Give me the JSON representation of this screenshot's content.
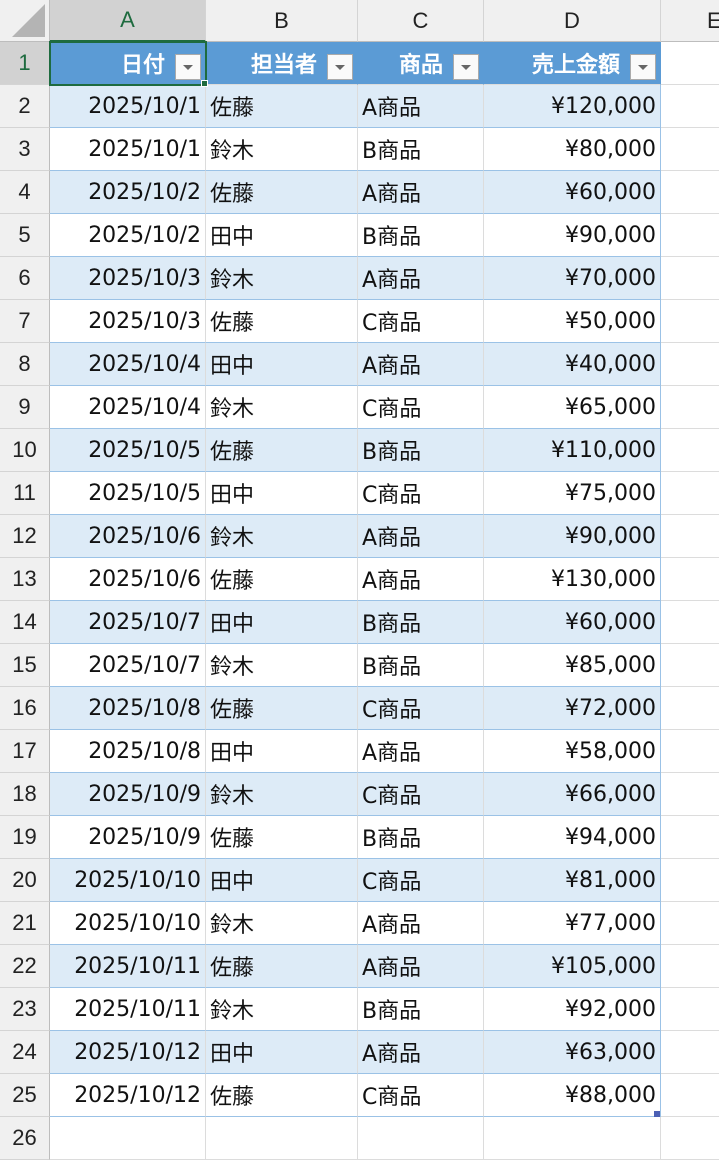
{
  "columns": [
    "A",
    "B",
    "C",
    "D",
    "E"
  ],
  "selected_cell": "A1",
  "colors": {
    "header_bg": "#5b9bd5",
    "band": "#ddebf7",
    "selection": "#1e6b3f"
  },
  "table": {
    "headers": [
      "日付",
      "担当者",
      "商品",
      "売上金額"
    ],
    "rows": [
      [
        "2025/10/1",
        "佐藤",
        "A商品",
        "¥120,000"
      ],
      [
        "2025/10/1",
        "鈴木",
        "B商品",
        "¥80,000"
      ],
      [
        "2025/10/2",
        "佐藤",
        "A商品",
        "¥60,000"
      ],
      [
        "2025/10/2",
        "田中",
        "B商品",
        "¥90,000"
      ],
      [
        "2025/10/3",
        "鈴木",
        "A商品",
        "¥70,000"
      ],
      [
        "2025/10/3",
        "佐藤",
        "C商品",
        "¥50,000"
      ],
      [
        "2025/10/4",
        "田中",
        "A商品",
        "¥40,000"
      ],
      [
        "2025/10/4",
        "鈴木",
        "C商品",
        "¥65,000"
      ],
      [
        "2025/10/5",
        "佐藤",
        "B商品",
        "¥110,000"
      ],
      [
        "2025/10/5",
        "田中",
        "C商品",
        "¥75,000"
      ],
      [
        "2025/10/6",
        "鈴木",
        "A商品",
        "¥90,000"
      ],
      [
        "2025/10/6",
        "佐藤",
        "A商品",
        "¥130,000"
      ],
      [
        "2025/10/7",
        "田中",
        "B商品",
        "¥60,000"
      ],
      [
        "2025/10/7",
        "鈴木",
        "B商品",
        "¥85,000"
      ],
      [
        "2025/10/8",
        "佐藤",
        "C商品",
        "¥72,000"
      ],
      [
        "2025/10/8",
        "田中",
        "A商品",
        "¥58,000"
      ],
      [
        "2025/10/9",
        "鈴木",
        "C商品",
        "¥66,000"
      ],
      [
        "2025/10/9",
        "佐藤",
        "B商品",
        "¥94,000"
      ],
      [
        "2025/10/10",
        "田中",
        "C商品",
        "¥81,000"
      ],
      [
        "2025/10/10",
        "鈴木",
        "A商品",
        "¥77,000"
      ],
      [
        "2025/10/11",
        "佐藤",
        "A商品",
        "¥105,000"
      ],
      [
        "2025/10/11",
        "鈴木",
        "B商品",
        "¥92,000"
      ],
      [
        "2025/10/12",
        "田中",
        "A商品",
        "¥63,000"
      ],
      [
        "2025/10/12",
        "佐藤",
        "C商品",
        "¥88,000"
      ]
    ]
  }
}
